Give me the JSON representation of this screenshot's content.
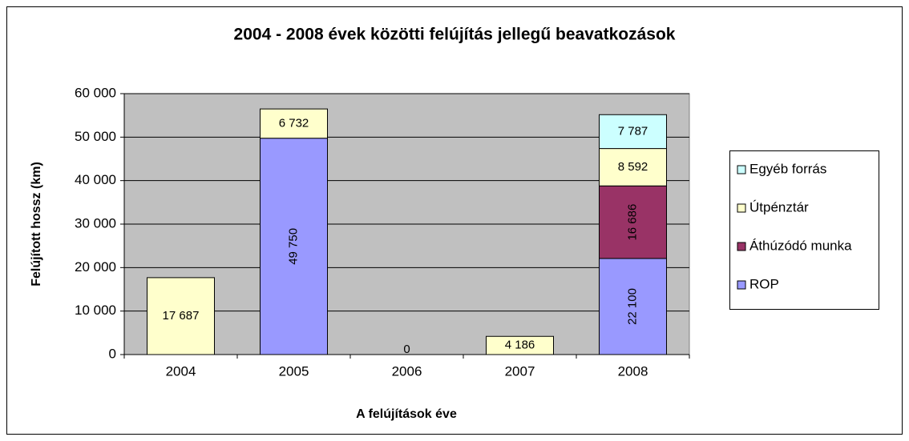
{
  "chart_data": {
    "type": "stacked_bar",
    "title": "2004 - 2008 évek közötti felújítás jellegű beavatkozások",
    "x_label": "A felújítások éve",
    "y_label": "Felújított hossz (km)",
    "categories": [
      "2004",
      "2005",
      "2006",
      "2007",
      "2008"
    ],
    "series": [
      {
        "name": "ROP",
        "color": "#9999ff",
        "values": [
          null,
          49750,
          null,
          null,
          22100
        ],
        "value_labels": [
          null,
          "49 750",
          null,
          null,
          "22 100"
        ]
      },
      {
        "name": "Áthúzódó munka",
        "color": "#993366",
        "values": [
          null,
          null,
          null,
          null,
          16686
        ],
        "value_labels": [
          null,
          null,
          null,
          null,
          "16 686"
        ]
      },
      {
        "name": "Útpénztár",
        "color": "#ffffcc",
        "values": [
          17687,
          6732,
          0,
          4186,
          8592
        ],
        "value_labels": [
          "17 687",
          "6 732",
          "0",
          "4 186",
          "8 592"
        ]
      },
      {
        "name": "Egyéb forrás",
        "color": "#ccffff",
        "values": [
          null,
          null,
          null,
          null,
          7787
        ],
        "value_labels": [
          null,
          null,
          null,
          null,
          "7 787"
        ]
      }
    ],
    "ylim": [
      0,
      60000
    ],
    "yticks": [
      0,
      {
        "value": 10000,
        "label": "10 000"
      },
      {
        "value": 20000,
        "label": "20 000"
      },
      {
        "value": 30000,
        "label": "30 000"
      },
      {
        "value": 40000,
        "label": "40 000"
      },
      {
        "value": 50000,
        "label": "50 000"
      },
      {
        "value": 60000,
        "label": "60 000"
      }
    ],
    "grid": true,
    "legend": "right"
  }
}
